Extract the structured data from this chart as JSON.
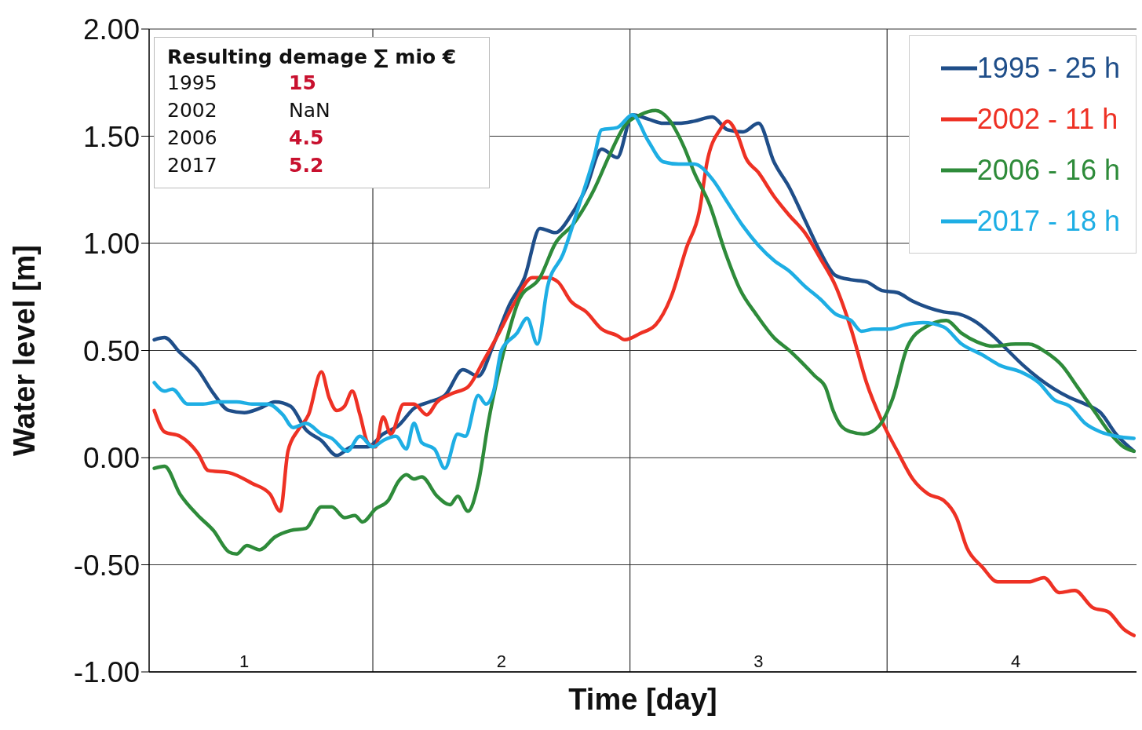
{
  "chart_data": {
    "type": "line",
    "xlabel": "Time [day]",
    "ylabel": "Water level [m]",
    "xlim": [
      0.63,
      4.47
    ],
    "xticks": [
      1,
      {
        "value": 1.5,
        "label": null
      },
      2,
      {
        "value": 2.5,
        "label": null
      },
      3,
      {
        "value": 3.5,
        "label": null
      },
      4
    ],
    "ylim": [
      -1,
      2
    ],
    "yticks": [
      {
        "value": -1,
        "label": "-1.00"
      },
      {
        "value": -0.5,
        "label": "-0.50"
      },
      {
        "value": 0,
        "label": "0.00"
      },
      {
        "value": 0.5,
        "label": "0.50"
      },
      {
        "value": 1,
        "label": "1.00"
      },
      {
        "value": 1.5,
        "label": "1.50"
      },
      {
        "value": 2,
        "label": "2.00"
      }
    ],
    "grid": true,
    "legend": "top right",
    "annotations": [
      "Resulting demage ∑ mio €",
      "1995",
      "15",
      "2002",
      "NaN",
      "2006",
      "4.5",
      "2017",
      "5.2"
    ],
    "series": [
      {
        "name": "1995 - 25 h",
        "color": "#1f4e89",
        "x": [
          0.65,
          0.69,
          0.75,
          0.82,
          0.88,
          0.94,
          1,
          1.06,
          1.12,
          1.18,
          1.24,
          1.3,
          1.36,
          1.42,
          1.48,
          1.54,
          1.6,
          1.66,
          1.72,
          1.78,
          1.85,
          1.91,
          1.97,
          2.03,
          2.09,
          2.15,
          2.21,
          2.27,
          2.33,
          2.39,
          2.45,
          2.51,
          2.57,
          2.63,
          2.69,
          2.75,
          2.82,
          2.88,
          2.94,
          3,
          3.06,
          3.12,
          3.18,
          3.24,
          3.3,
          3.36,
          3.42,
          3.48,
          3.54,
          3.6,
          3.66,
          3.72,
          3.78,
          3.85,
          3.91,
          3.97,
          4.03,
          4.09,
          4.15,
          4.21,
          4.27,
          4.33,
          4.39,
          4.46
        ],
        "values": [
          0.55,
          0.56,
          0.49,
          0.41,
          0.3,
          0.22,
          0.21,
          0.23,
          0.26,
          0.24,
          0.13,
          0.08,
          0.01,
          0.05,
          0.05,
          0.11,
          0.15,
          0.23,
          0.26,
          0.29,
          0.41,
          0.38,
          0.53,
          0.71,
          0.84,
          1.07,
          1.05,
          1.13,
          1.26,
          1.44,
          1.4,
          1.6,
          1.58,
          1.56,
          1.56,
          1.57,
          1.59,
          1.53,
          1.52,
          1.56,
          1.38,
          1.26,
          1.11,
          0.96,
          0.85,
          0.83,
          0.82,
          0.78,
          0.77,
          0.73,
          0.7,
          0.68,
          0.67,
          0.63,
          0.57,
          0.5,
          0.43,
          0.37,
          0.32,
          0.28,
          0.25,
          0.21,
          0.11,
          0.03
        ]
      },
      {
        "name": "2002 - 11 h",
        "color": "#ee3124",
        "x": [
          0.65,
          0.69,
          0.75,
          0.82,
          0.86,
          0.94,
          1.03,
          1.1,
          1.14,
          1.17,
          1.21,
          1.25,
          1.3,
          1.33,
          1.36,
          1.39,
          1.42,
          1.45,
          1.48,
          1.51,
          1.54,
          1.57,
          1.62,
          1.66,
          1.71,
          1.75,
          1.81,
          1.87,
          1.93,
          1.99,
          2.05,
          2.12,
          2.18,
          2.22,
          2.27,
          2.33,
          2.39,
          2.45,
          2.48,
          2.54,
          2.6,
          2.66,
          2.72,
          2.77,
          2.8,
          2.85,
          2.88,
          2.92,
          2.95,
          3,
          3.06,
          3.12,
          3.18,
          3.24,
          3.3,
          3.36,
          3.42,
          3.48,
          3.54,
          3.6,
          3.66,
          3.72,
          3.77,
          3.81,
          3.87,
          3.93,
          3.99,
          4.05,
          4.11,
          4.17,
          4.23,
          4.3,
          4.36,
          4.42,
          4.46
        ],
        "values": [
          0.22,
          0.12,
          0.1,
          0.02,
          -0.06,
          -0.07,
          -0.12,
          -0.17,
          -0.25,
          0.03,
          0.13,
          0.2,
          0.4,
          0.28,
          0.22,
          0.24,
          0.31,
          0.2,
          0.07,
          0.05,
          0.19,
          0.11,
          0.25,
          0.25,
          0.2,
          0.26,
          0.3,
          0.33,
          0.45,
          0.58,
          0.72,
          0.84,
          0.84,
          0.82,
          0.73,
          0.68,
          0.6,
          0.57,
          0.55,
          0.58,
          0.62,
          0.75,
          0.98,
          1.15,
          1.38,
          1.53,
          1.57,
          1.5,
          1.4,
          1.33,
          1.22,
          1.13,
          1.05,
          0.93,
          0.8,
          0.6,
          0.35,
          0.17,
          0.03,
          -0.1,
          -0.17,
          -0.2,
          -0.28,
          -0.42,
          -0.51,
          -0.58,
          -0.58,
          -0.58,
          -0.56,
          -0.63,
          -0.62,
          -0.7,
          -0.72,
          -0.8,
          -0.83
        ]
      },
      {
        "name": "2006 - 16 h",
        "color": "#2e8b3a",
        "x": [
          0.65,
          0.69,
          0.75,
          0.82,
          0.88,
          0.94,
          0.97,
          1.01,
          1.06,
          1.12,
          1.18,
          1.24,
          1.3,
          1.34,
          1.39,
          1.43,
          1.46,
          1.51,
          1.56,
          1.6,
          1.63,
          1.66,
          1.69,
          1.75,
          1.8,
          1.83,
          1.87,
          1.91,
          1.95,
          2.01,
          2.07,
          2.15,
          2.21,
          2.28,
          2.36,
          2.42,
          2.48,
          2.54,
          2.6,
          2.65,
          2.71,
          2.75,
          2.81,
          2.87,
          2.93,
          2.99,
          3.06,
          3.12,
          3.18,
          3.22,
          3.26,
          3.29,
          3.32,
          3.36,
          3.41,
          3.47,
          3.52,
          3.58,
          3.65,
          3.73,
          3.79,
          3.85,
          3.91,
          4,
          4.05,
          4.12,
          4.18,
          4.24,
          4.31,
          4.37,
          4.42,
          4.46
        ],
        "values": [
          -0.05,
          -0.04,
          -0.17,
          -0.27,
          -0.34,
          -0.44,
          -0.45,
          -0.41,
          -0.43,
          -0.37,
          -0.34,
          -0.33,
          -0.23,
          -0.23,
          -0.28,
          -0.27,
          -0.3,
          -0.24,
          -0.2,
          -0.11,
          -0.08,
          -0.1,
          -0.09,
          -0.18,
          -0.22,
          -0.18,
          -0.25,
          -0.12,
          0.17,
          0.5,
          0.74,
          0.84,
          1,
          1.09,
          1.25,
          1.41,
          1.55,
          1.6,
          1.62,
          1.58,
          1.45,
          1.33,
          1.18,
          0.96,
          0.78,
          0.67,
          0.56,
          0.5,
          0.43,
          0.38,
          0.33,
          0.22,
          0.15,
          0.12,
          0.11,
          0.15,
          0.27,
          0.52,
          0.61,
          0.64,
          0.58,
          0.54,
          0.52,
          0.53,
          0.53,
          0.49,
          0.43,
          0.33,
          0.21,
          0.11,
          0.05,
          0.03
        ]
      },
      {
        "name": "2017 - 18 h",
        "color": "#1eaee4",
        "x": [
          0.65,
          0.69,
          0.72,
          0.78,
          0.84,
          0.9,
          0.97,
          1.03,
          1.09,
          1.15,
          1.19,
          1.24,
          1.3,
          1.34,
          1.4,
          1.45,
          1.5,
          1.54,
          1.59,
          1.63,
          1.66,
          1.69,
          1.74,
          1.78,
          1.83,
          1.86,
          1.91,
          1.94,
          1.97,
          2,
          2.06,
          2.1,
          2.14,
          2.18,
          2.24,
          2.3,
          2.36,
          2.39,
          2.45,
          2.51,
          2.57,
          2.63,
          2.69,
          2.75,
          2.82,
          2.88,
          2.94,
          3,
          3.06,
          3.12,
          3.18,
          3.24,
          3.3,
          3.36,
          3.4,
          3.45,
          3.51,
          3.57,
          3.64,
          3.72,
          3.79,
          3.87,
          3.94,
          4.02,
          4.09,
          4.15,
          4.21,
          4.27,
          4.33,
          4.39,
          4.46
        ],
        "values": [
          0.35,
          0.31,
          0.32,
          0.25,
          0.25,
          0.26,
          0.26,
          0.25,
          0.25,
          0.2,
          0.14,
          0.16,
          0.11,
          0.09,
          0.03,
          0.1,
          0.05,
          0.08,
          0.1,
          0.04,
          0.16,
          0.07,
          0.04,
          -0.05,
          0.11,
          0.1,
          0.29,
          0.25,
          0.31,
          0.5,
          0.58,
          0.65,
          0.53,
          0.8,
          0.95,
          1.17,
          1.4,
          1.53,
          1.54,
          1.6,
          1.48,
          1.38,
          1.37,
          1.37,
          1.3,
          1.19,
          1.08,
          0.99,
          0.92,
          0.87,
          0.8,
          0.74,
          0.67,
          0.64,
          0.59,
          0.6,
          0.6,
          0.62,
          0.63,
          0.61,
          0.53,
          0.48,
          0.43,
          0.4,
          0.35,
          0.27,
          0.24,
          0.16,
          0.12,
          0.1,
          0.09
        ]
      }
    ]
  }
}
